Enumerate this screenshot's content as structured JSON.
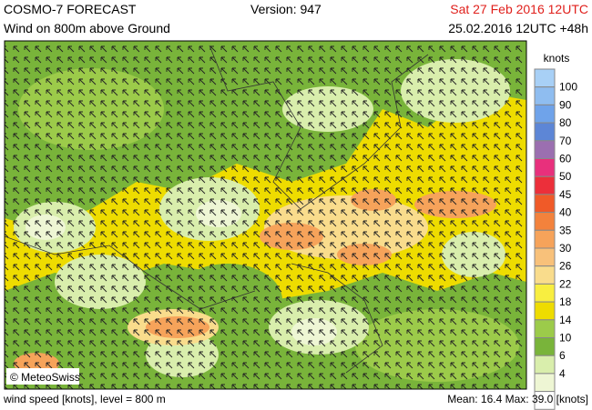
{
  "header": {
    "title": "COSMO-7 FORECAST",
    "subtitle": "Wind on 800m above Ground",
    "version": "Version: 947",
    "valid_time": "Sat 27 Feb 2016 12UTC",
    "run_time": "25.02.2016 12UTC +48h"
  },
  "legend": {
    "title": "knots",
    "levels": [
      {
        "label": "100",
        "color": "#8fbdf0"
      },
      {
        "label": "90",
        "color": "#6fa3ea"
      },
      {
        "label": "80",
        "color": "#5d86d6"
      },
      {
        "label": "70",
        "color": "#9b6fb0"
      },
      {
        "label": "60",
        "color": "#e8307c"
      },
      {
        "label": "50",
        "color": "#ec2f3a"
      },
      {
        "label": "45",
        "color": "#f05a28"
      },
      {
        "label": "40",
        "color": "#f3823c"
      },
      {
        "label": "35",
        "color": "#f6a35a"
      },
      {
        "label": "30",
        "color": "#f8c17a"
      },
      {
        "label": "26",
        "color": "#f9dc8c"
      },
      {
        "label": "22",
        "color": "#f8ee40"
      },
      {
        "label": "18",
        "color": "#eedc00"
      },
      {
        "label": "14",
        "color": "#9ccb4a"
      },
      {
        "label": "10",
        "color": "#79b43a"
      },
      {
        "label": "6",
        "color": "#d9eeac"
      },
      {
        "label": "4",
        "color": "#eef6d4"
      }
    ]
  },
  "map": {
    "credit": "© MeteoSwiss"
  },
  "footer": {
    "left": "wind speed [knots], level = 800 m",
    "right": "Mean:  16.4 Max:  39.0 [knots]"
  }
}
